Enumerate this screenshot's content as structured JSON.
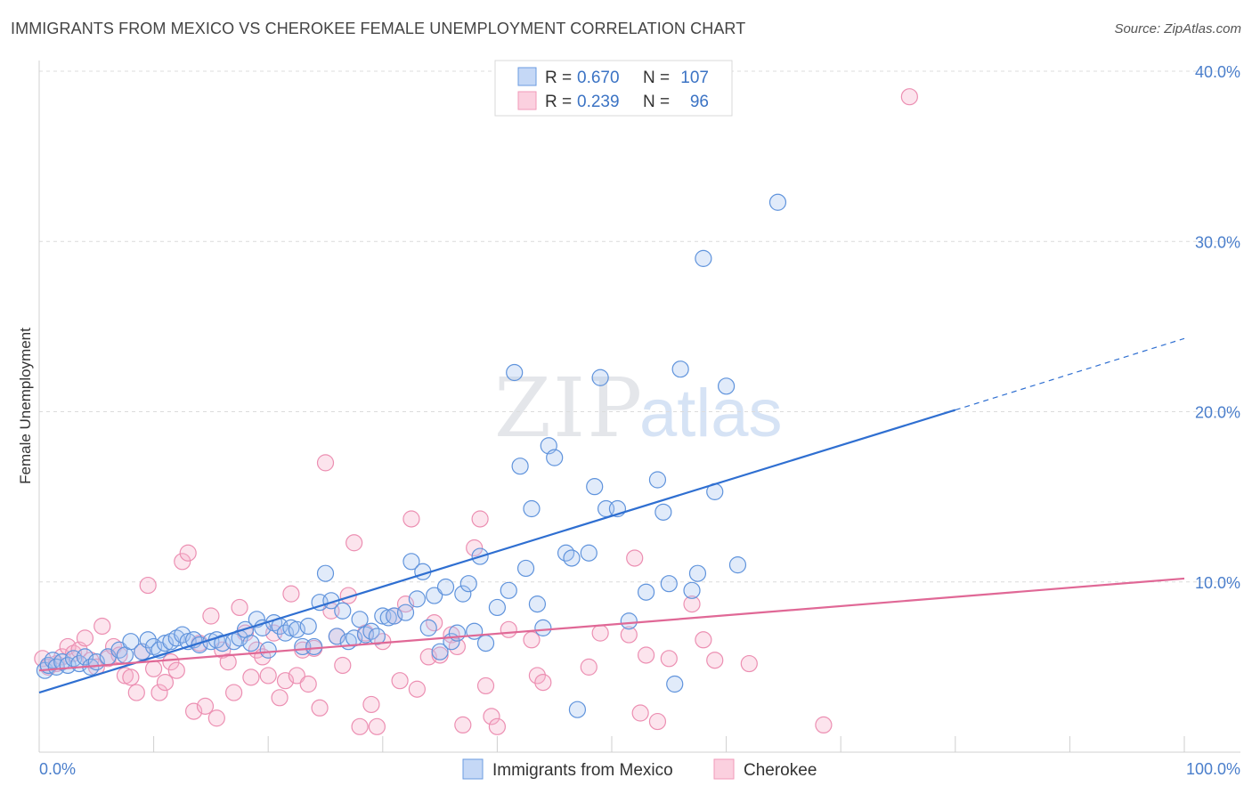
{
  "header": {
    "title": "IMMIGRANTS FROM MEXICO VS CHEROKEE FEMALE UNEMPLOYMENT CORRELATION CHART",
    "source": "Source: ZipAtlas.com"
  },
  "watermark": {
    "zip": "ZIP",
    "atlas": "atlas"
  },
  "legend": {
    "rows": [
      {
        "r_label": "R =",
        "r_value": "0.670",
        "n_label": "N =",
        "n_value": "107"
      },
      {
        "r_label": "R =",
        "r_value": "0.239",
        "n_label": "N =",
        "n_value": "96"
      }
    ]
  },
  "chart_data": {
    "type": "scatter",
    "title": "IMMIGRANTS FROM MEXICO VS CHEROKEE FEMALE UNEMPLOYMENT CORRELATION CHART",
    "xlabel": "",
    "ylabel": "Female Unemployment",
    "xlim": [
      0,
      100
    ],
    "ylim": [
      0,
      40
    ],
    "x_tick_labels": [
      "0.0%",
      "100.0%"
    ],
    "y_ticks": [
      10,
      20,
      30,
      40
    ],
    "y_tick_labels": [
      "10.0%",
      "20.0%",
      "30.0%",
      "40.0%"
    ],
    "grid": true,
    "legend_position": "top-center",
    "colors": {
      "mexico": "#6a9be0",
      "cherokee": "#f19ab9",
      "mexico_line": "#2f6fd1",
      "cherokee_line": "#e06896"
    },
    "series": [
      {
        "name": "Immigrants from Mexico",
        "r": 0.67,
        "n": 107,
        "trend": {
          "x": [
            0,
            80
          ],
          "y": [
            3.5,
            20.1
          ],
          "dashed_to": [
            100,
            24.3
          ]
        },
        "points": [
          [
            0.5,
            4.8
          ],
          [
            0.8,
            5.1
          ],
          [
            1.2,
            5.4
          ],
          [
            1.5,
            5.0
          ],
          [
            2.0,
            5.3
          ],
          [
            2.5,
            5.1
          ],
          [
            3.0,
            5.5
          ],
          [
            3.5,
            5.2
          ],
          [
            4.0,
            5.6
          ],
          [
            4.5,
            5.0
          ],
          [
            5.0,
            5.3
          ],
          [
            6.0,
            5.6
          ],
          [
            7.0,
            6.0
          ],
          [
            7.5,
            5.7
          ],
          [
            8.0,
            6.5
          ],
          [
            9.0,
            5.9
          ],
          [
            9.5,
            6.6
          ],
          [
            10.0,
            6.2
          ],
          [
            10.5,
            6.0
          ],
          [
            11.0,
            6.4
          ],
          [
            11.5,
            6.5
          ],
          [
            12.0,
            6.7
          ],
          [
            12.5,
            6.9
          ],
          [
            13.0,
            6.5
          ],
          [
            13.5,
            6.6
          ],
          [
            14.0,
            6.3
          ],
          [
            15.0,
            6.5
          ],
          [
            15.5,
            6.6
          ],
          [
            16.0,
            6.4
          ],
          [
            17.0,
            6.5
          ],
          [
            17.5,
            6.7
          ],
          [
            18.0,
            7.2
          ],
          [
            18.5,
            6.4
          ],
          [
            19.0,
            7.8
          ],
          [
            19.5,
            7.3
          ],
          [
            20.0,
            6.0
          ],
          [
            20.5,
            7.6
          ],
          [
            21.0,
            7.4
          ],
          [
            21.5,
            7.0
          ],
          [
            22.0,
            7.3
          ],
          [
            22.5,
            7.2
          ],
          [
            23.0,
            6.2
          ],
          [
            23.5,
            7.4
          ],
          [
            24.0,
            6.2
          ],
          [
            24.5,
            8.8
          ],
          [
            25.0,
            10.5
          ],
          [
            25.5,
            8.9
          ],
          [
            26.0,
            6.8
          ],
          [
            26.5,
            8.3
          ],
          [
            27.0,
            6.5
          ],
          [
            27.5,
            6.7
          ],
          [
            28.0,
            7.8
          ],
          [
            28.5,
            6.9
          ],
          [
            29.0,
            7.1
          ],
          [
            29.5,
            6.8
          ],
          [
            30.0,
            8.0
          ],
          [
            30.5,
            7.9
          ],
          [
            31.0,
            8.0
          ],
          [
            32.0,
            8.2
          ],
          [
            32.5,
            11.2
          ],
          [
            33.0,
            9.0
          ],
          [
            33.5,
            10.6
          ],
          [
            34.0,
            7.3
          ],
          [
            34.5,
            9.2
          ],
          [
            35.0,
            5.9
          ],
          [
            35.5,
            9.7
          ],
          [
            36.0,
            6.5
          ],
          [
            36.5,
            7.0
          ],
          [
            37.0,
            9.3
          ],
          [
            37.5,
            9.9
          ],
          [
            38.0,
            7.1
          ],
          [
            38.5,
            11.5
          ],
          [
            39.0,
            6.4
          ],
          [
            40.0,
            8.5
          ],
          [
            41.0,
            9.5
          ],
          [
            41.5,
            22.3
          ],
          [
            42.0,
            16.8
          ],
          [
            42.5,
            10.8
          ],
          [
            43.0,
            14.3
          ],
          [
            43.5,
            8.7
          ],
          [
            44.0,
            7.3
          ],
          [
            44.5,
            18.0
          ],
          [
            45.0,
            17.3
          ],
          [
            46.0,
            11.7
          ],
          [
            46.5,
            11.4
          ],
          [
            47.0,
            2.5
          ],
          [
            48.0,
            11.7
          ],
          [
            48.5,
            15.6
          ],
          [
            49.0,
            22.0
          ],
          [
            49.5,
            14.3
          ],
          [
            50.5,
            14.3
          ],
          [
            51.5,
            7.7
          ],
          [
            53.0,
            9.4
          ],
          [
            54.0,
            16.0
          ],
          [
            54.5,
            14.1
          ],
          [
            55.0,
            9.9
          ],
          [
            56.0,
            22.5
          ],
          [
            55.5,
            4.0
          ],
          [
            57.0,
            9.5
          ],
          [
            57.5,
            10.5
          ],
          [
            58.0,
            29.0
          ],
          [
            59.0,
            15.3
          ],
          [
            60.0,
            21.5
          ],
          [
            61.0,
            11.0
          ],
          [
            64.5,
            32.3
          ]
        ]
      },
      {
        "name": "Cherokee",
        "r": 0.239,
        "n": 96,
        "trend": {
          "x": [
            0,
            100
          ],
          "y": [
            4.8,
            10.2
          ]
        },
        "points": [
          [
            0.3,
            5.5
          ],
          [
            0.8,
            5.0
          ],
          [
            1.5,
            5.2
          ],
          [
            2.0,
            5.6
          ],
          [
            2.5,
            6.2
          ],
          [
            3.0,
            5.8
          ],
          [
            3.5,
            6.0
          ],
          [
            4.0,
            6.7
          ],
          [
            4.5,
            5.4
          ],
          [
            5.0,
            5.0
          ],
          [
            5.5,
            7.4
          ],
          [
            6.0,
            5.5
          ],
          [
            6.5,
            6.2
          ],
          [
            7.0,
            5.7
          ],
          [
            7.5,
            4.5
          ],
          [
            8.0,
            4.4
          ],
          [
            8.5,
            3.5
          ],
          [
            9.0,
            5.9
          ],
          [
            9.5,
            9.8
          ],
          [
            10.0,
            4.9
          ],
          [
            10.5,
            3.5
          ],
          [
            11.0,
            4.1
          ],
          [
            11.5,
            5.3
          ],
          [
            12.0,
            4.8
          ],
          [
            12.5,
            11.2
          ],
          [
            13.0,
            11.7
          ],
          [
            13.5,
            2.4
          ],
          [
            14.0,
            6.4
          ],
          [
            14.5,
            2.7
          ],
          [
            15.0,
            8.0
          ],
          [
            15.5,
            2.0
          ],
          [
            16.0,
            6.0
          ],
          [
            16.5,
            5.3
          ],
          [
            17.0,
            3.5
          ],
          [
            17.5,
            8.5
          ],
          [
            18.0,
            7.0
          ],
          [
            18.5,
            4.4
          ],
          [
            19.0,
            6.0
          ],
          [
            19.5,
            5.6
          ],
          [
            20.0,
            4.5
          ],
          [
            20.5,
            7.0
          ],
          [
            21.0,
            3.2
          ],
          [
            21.5,
            4.2
          ],
          [
            22.0,
            9.3
          ],
          [
            22.5,
            4.5
          ],
          [
            23.0,
            6.0
          ],
          [
            23.5,
            4.0
          ],
          [
            24.0,
            6.1
          ],
          [
            24.5,
            2.6
          ],
          [
            25.0,
            17.0
          ],
          [
            25.5,
            8.3
          ],
          [
            26.0,
            6.8
          ],
          [
            26.5,
            5.1
          ],
          [
            27.0,
            9.2
          ],
          [
            27.5,
            12.3
          ],
          [
            28.0,
            1.5
          ],
          [
            28.5,
            7.0
          ],
          [
            29.0,
            2.8
          ],
          [
            29.5,
            1.5
          ],
          [
            30.0,
            6.5
          ],
          [
            31.0,
            8.0
          ],
          [
            31.5,
            4.2
          ],
          [
            32.0,
            8.7
          ],
          [
            32.5,
            13.7
          ],
          [
            33.0,
            3.7
          ],
          [
            34.0,
            5.6
          ],
          [
            34.5,
            7.6
          ],
          [
            35.0,
            5.7
          ],
          [
            36.0,
            6.9
          ],
          [
            36.5,
            6.2
          ],
          [
            37.0,
            1.6
          ],
          [
            38.0,
            12.0
          ],
          [
            38.5,
            13.7
          ],
          [
            39.0,
            3.9
          ],
          [
            39.5,
            2.1
          ],
          [
            40.0,
            1.5
          ],
          [
            41.0,
            7.2
          ],
          [
            43.0,
            6.6
          ],
          [
            43.5,
            4.5
          ],
          [
            44.0,
            4.1
          ],
          [
            48.0,
            5.0
          ],
          [
            49.0,
            7.0
          ],
          [
            51.5,
            6.9
          ],
          [
            52.0,
            11.4
          ],
          [
            52.5,
            2.3
          ],
          [
            53.0,
            5.7
          ],
          [
            54.0,
            1.8
          ],
          [
            55.0,
            5.5
          ],
          [
            57.0,
            8.7
          ],
          [
            58.0,
            6.6
          ],
          [
            59.0,
            5.4
          ],
          [
            62.0,
            5.2
          ],
          [
            68.5,
            1.6
          ],
          [
            76.0,
            38.5
          ]
        ]
      }
    ]
  },
  "bottom_legend": {
    "items": [
      {
        "label": "Immigrants from Mexico"
      },
      {
        "label": "Cherokee"
      }
    ]
  }
}
